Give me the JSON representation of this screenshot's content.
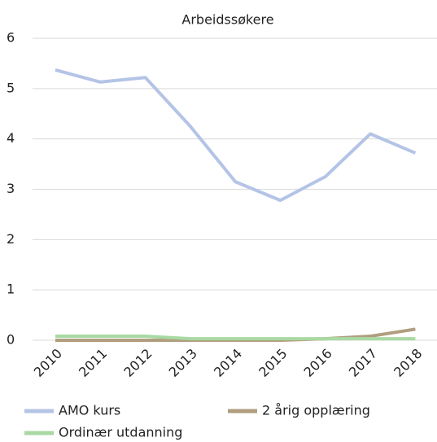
{
  "chart_data": {
    "type": "line",
    "title": "Arbeidssøkere",
    "categories": [
      "2010",
      "2011",
      "2012",
      "2013",
      "2014",
      "2015",
      "2016",
      "2017",
      "2018"
    ],
    "series": [
      {
        "name": "AMO kurs",
        "color": "#b4c4e6",
        "values": [
          5.37,
          5.13,
          5.22,
          4.25,
          3.15,
          2.78,
          3.25,
          4.1,
          3.72
        ]
      },
      {
        "name": "2 årig opplæring",
        "color": "#b09e7e",
        "values": [
          0,
          0,
          0,
          0,
          0,
          0,
          0.03,
          0.08,
          0.22
        ]
      },
      {
        "name": "Ordinær utdanning",
        "color": "#a9d9a3",
        "values": [
          0.08,
          0.08,
          0.08,
          0.03,
          0.03,
          0.03,
          0.03,
          0.03,
          0.03
        ]
      }
    ],
    "ylim": [
      0,
      6
    ],
    "yticks": [
      0,
      1,
      2,
      3,
      4,
      5,
      6
    ],
    "grid": true
  }
}
